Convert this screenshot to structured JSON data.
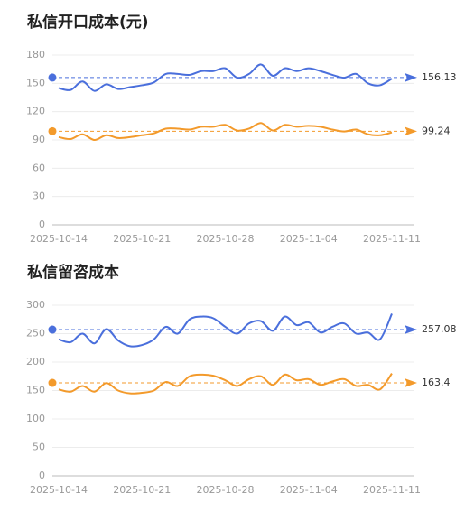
{
  "chart_data": [
    {
      "type": "line",
      "title": "私信开口成本(元)",
      "categories": [
        "2025-10-14",
        null,
        null,
        null,
        null,
        null,
        null,
        "2025-10-21",
        null,
        null,
        null,
        null,
        null,
        null,
        "2025-10-28",
        null,
        null,
        null,
        null,
        null,
        null,
        "2025-11-04",
        null,
        null,
        null,
        null,
        null,
        null,
        "2025-11-11"
      ],
      "series": [
        {
          "color": "#4a6fdc",
          "mean": 156.13,
          "values": [
            145,
            143,
            152,
            142,
            149,
            144,
            146,
            148,
            151,
            160,
            160,
            159,
            163,
            163,
            166,
            156,
            160,
            170,
            158,
            166,
            163,
            166,
            163,
            159,
            156,
            160,
            150,
            148,
            155
          ]
        },
        {
          "color": "#f39a2b",
          "mean": 99.24,
          "values": [
            93,
            91,
            96,
            90,
            95,
            92,
            93,
            95,
            97,
            102,
            102,
            101,
            104,
            104,
            106,
            100,
            102,
            108,
            100,
            106,
            104,
            105,
            104,
            101,
            99,
            101,
            96,
            95,
            98
          ]
        }
      ],
      "ylim": [
        0,
        180
      ],
      "yticks": [
        0,
        30,
        60,
        90,
        120,
        150,
        180
      ],
      "grid": true
    },
    {
      "type": "line",
      "title": "私信留咨成本",
      "categories": [
        "2025-10-14",
        null,
        null,
        null,
        null,
        null,
        null,
        "2025-10-21",
        null,
        null,
        null,
        null,
        null,
        null,
        "2025-10-28",
        null,
        null,
        null,
        null,
        null,
        null,
        "2025-11-04",
        null,
        null,
        null,
        null,
        null,
        null,
        "2025-11-11"
      ],
      "series": [
        {
          "color": "#4a6fdc",
          "mean": 257.08,
          "values": [
            240,
            235,
            250,
            233,
            258,
            238,
            228,
            230,
            240,
            262,
            250,
            275,
            280,
            277,
            262,
            250,
            268,
            272,
            255,
            280,
            265,
            270,
            252,
            262,
            268,
            250,
            252,
            240,
            285
          ]
        },
        {
          "color": "#f39a2b",
          "mean": 163.4,
          "values": [
            152,
            148,
            158,
            148,
            163,
            150,
            145,
            146,
            150,
            165,
            158,
            175,
            178,
            176,
            168,
            158,
            170,
            175,
            160,
            178,
            168,
            170,
            160,
            166,
            170,
            158,
            160,
            152,
            180
          ]
        }
      ],
      "ylim": [
        0,
        300
      ],
      "yticks": [
        0,
        50,
        100,
        150,
        200,
        250,
        300
      ],
      "grid": true
    }
  ]
}
